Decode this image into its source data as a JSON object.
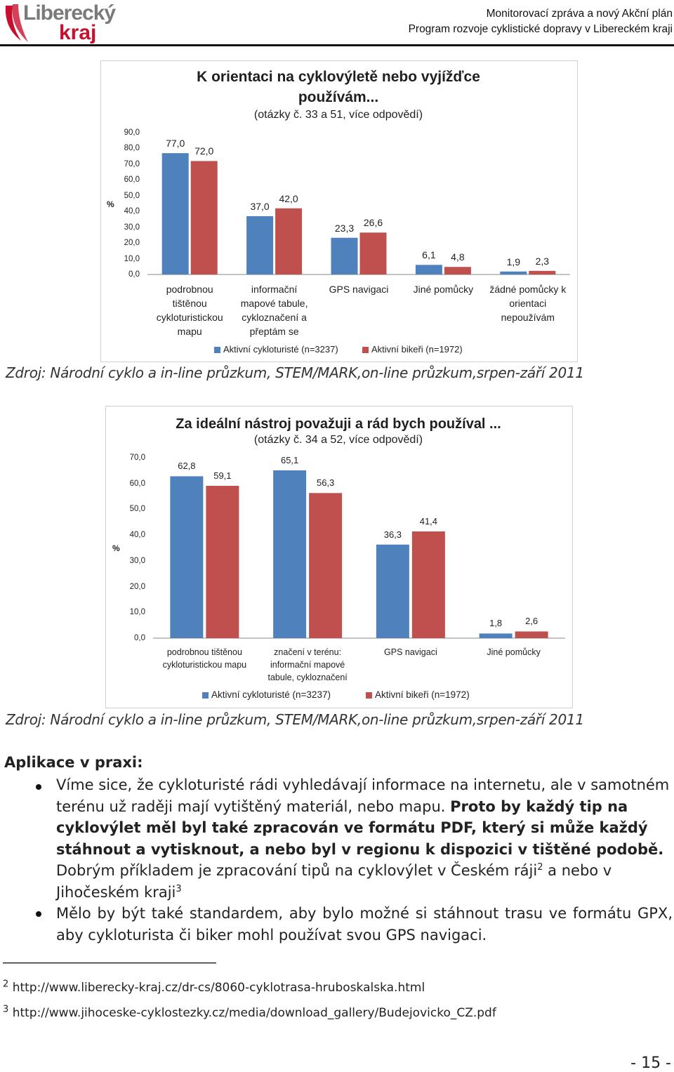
{
  "header": {
    "logo_top": "Liberecký",
    "logo_bottom": "kraj",
    "line1": "Monitorovací zpráva a nový Akční plán",
    "line2": "Program rozvoje cyklistické dopravy v Libereckém kraji"
  },
  "chart_data": [
    {
      "type": "bar",
      "title": "K orientaci na cyklovýletě nebo vyjížďce používám...",
      "subtitle": "(otázky č. 33 a 51, více odpovědí)",
      "ylabel": "%",
      "categories": [
        "podrobnou\ntištěnou\ncykloturistickou\nmapu",
        "informační\nmapové tabule,\ncykloznačení a\npřeptám se",
        "GPS navigaci",
        "Jiné pomůcky",
        "žádné pomůcky k\norientaci\nnepoužívám"
      ],
      "series": [
        {
          "name": "Aktivní cykloturisté (n=3237)",
          "color": "#4f81bd",
          "values": [
            77.0,
            37.0,
            23.3,
            6.1,
            1.9
          ],
          "value_labels": [
            "77,0",
            "37,0",
            "23,3",
            "6,1",
            "1,9"
          ]
        },
        {
          "name": "Aktivní bikeři (n=1972)",
          "color": "#c0504d",
          "values": [
            72.0,
            42.0,
            26.6,
            4.8,
            2.3
          ],
          "value_labels": [
            "72,0",
            "42,0",
            "26,6",
            "4,8",
            "2,3"
          ]
        }
      ],
      "ylim": [
        0,
        90
      ],
      "yticks": [
        {
          "value": 0,
          "label": "0,0"
        },
        {
          "value": 10,
          "label": "10,0"
        },
        {
          "value": 20,
          "label": "20,0"
        },
        {
          "value": 30,
          "label": "30,0"
        },
        {
          "value": 40,
          "label": "40,0"
        },
        {
          "value": 50,
          "label": "50,0"
        },
        {
          "value": 60,
          "label": "60,0"
        },
        {
          "value": 70,
          "label": "70,0"
        },
        {
          "value": 80,
          "label": "80,0"
        },
        {
          "value": 90,
          "label": "90,0"
        }
      ],
      "grid": false,
      "legend": "bottom"
    },
    {
      "type": "bar",
      "title": "Za ideální nástroj považuji a rád bych používal ...",
      "subtitle": "(otázky č. 34 a 52, více odpovědí)",
      "ylabel": "%",
      "categories": [
        "podrobnou tištěnou\ncykloturistickou mapu",
        "značení v terénu:\ninformační mapové\ntabule, cykloznačení",
        "GPS navigaci",
        "Jiné pomůcky"
      ],
      "series": [
        {
          "name": "Aktivní cykloturisté (n=3237)",
          "color": "#4f81bd",
          "values": [
            62.8,
            65.1,
            36.3,
            1.8
          ],
          "value_labels": [
            "62,8",
            "65,1",
            "36,3",
            "1,8"
          ]
        },
        {
          "name": "Aktivní bikeři (n=1972)",
          "color": "#c0504d",
          "values": [
            59.1,
            56.3,
            41.4,
            2.6
          ],
          "value_labels": [
            "59,1",
            "56,3",
            "41,4",
            "2,6"
          ]
        }
      ],
      "ylim": [
        0,
        70
      ],
      "yticks": [
        {
          "value": 0,
          "label": "0,0"
        },
        {
          "value": 10,
          "label": "10,0"
        },
        {
          "value": 20,
          "label": "20,0"
        },
        {
          "value": 30,
          "label": "30,0"
        },
        {
          "value": 40,
          "label": "40,0"
        },
        {
          "value": 50,
          "label": "50,0"
        },
        {
          "value": 60,
          "label": "60,0"
        },
        {
          "value": 70,
          "label": "70,0"
        }
      ],
      "grid": false,
      "legend": "bottom"
    }
  ],
  "sources": [
    "Zdroj: Národní cyklo a in-line průzkum, STEM/MARK,on-line průzkum,srpen-září 2011",
    "Zdroj: Národní cyklo a in-line průzkum, STEM/MARK,on-line průzkum,srpen-září 2011"
  ],
  "section": {
    "heading": "Aplikace v praxi:",
    "bullets": [
      [
        "Víme sice, že cykloturisté rádi vyhledávají informace na internetu, ale v samotném terénu už raději mají vytištěný materiál, nebo mapu. ",
        "Proto by každý tip na cyklovýlet měl byl také zpracován ve formátu PDF, který si může každý stáhnout a vytisknout, a nebo byl v regionu k dispozici v tištěné podobě.",
        " Dobrým příkladem je zpracování tipů na cyklovýlet v Českém ráji",
        "2",
        " a nebo v Jihočeském kraji",
        "3"
      ],
      [
        "Mělo by být také standardem, aby bylo možné si stáhnout trasu ve formátu GPX, aby cykloturista či biker mohl používat svou GPS navigaci."
      ]
    ]
  },
  "footnotes": [
    {
      "mark": "2",
      "text": "http://www.liberecky-kraj.cz/dr-cs/8060-cyklotrasa-hruboskalska.html"
    },
    {
      "mark": "3",
      "text": "http://www.jihoceske-cyklostezky.cz/media/download_gallery/Budejovicko_CZ.pdf"
    }
  ],
  "page_number": "- 15 -"
}
